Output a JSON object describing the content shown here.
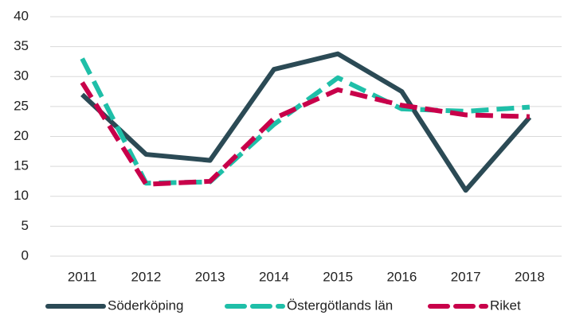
{
  "chart_data": {
    "type": "line",
    "categories": [
      "2011",
      "2012",
      "2013",
      "2014",
      "2015",
      "2016",
      "2017",
      "2018"
    ],
    "series": [
      {
        "name": "Söderköping",
        "color": "#2b4a55",
        "dash": "solid",
        "values": [
          27,
          17,
          16,
          31.2,
          33.8,
          27.5,
          11,
          23.2
        ]
      },
      {
        "name": "Östergötlands län",
        "color": "#1fbfa8",
        "dash": "dashed",
        "values": [
          33,
          12.2,
          12.4,
          22,
          29.8,
          24.6,
          24.2,
          24.9
        ]
      },
      {
        "name": "Riket",
        "color": "#c8004a",
        "dash": "dashed",
        "values": [
          29,
          12,
          12.5,
          23,
          27.8,
          25.2,
          23.6,
          23.3
        ]
      }
    ],
    "ylim": [
      0,
      40
    ],
    "yticks": [
      0,
      5,
      10,
      15,
      20,
      25,
      30,
      35,
      40
    ],
    "grid": true,
    "legend": "bottom"
  }
}
